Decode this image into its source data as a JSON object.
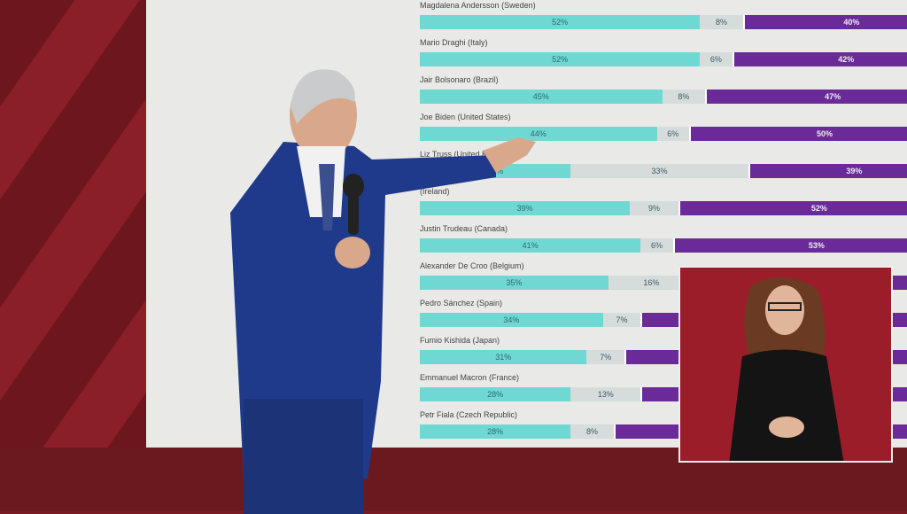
{
  "chart_data": {
    "type": "bar",
    "stacked": true,
    "orientation": "horizontal",
    "colors": {
      "approve": "#6fd8d2",
      "unsure": "#d6dcdb",
      "disapprove": "#6a2a98"
    },
    "rows": [
      {
        "label": "Magdalena Andersson (Sweden)",
        "values": [
          52,
          8,
          40
        ]
      },
      {
        "label": "Mario Draghi (Italy)",
        "values": [
          52,
          6,
          42
        ]
      },
      {
        "label": "Jair Bolsonaro (Brazil)",
        "values": [
          45,
          8,
          47
        ]
      },
      {
        "label": "Joe Biden (United States)",
        "values": [
          44,
          6,
          50
        ]
      },
      {
        "label": "Liz Truss (United Kin",
        "values": [
          28,
          33,
          39
        ]
      },
      {
        "label": "(Ireland)",
        "values": [
          39,
          9,
          52
        ]
      },
      {
        "label": "Justin Trudeau (Canada)",
        "values": [
          41,
          6,
          53
        ]
      },
      {
        "label": "Alexander De Croo (Belgium)",
        "values": [
          35,
          16,
          null
        ]
      },
      {
        "label": "Pedro Sánchez (Spain)",
        "values": [
          34,
          7,
          null
        ]
      },
      {
        "label": "Fumio Kishida (Japan)",
        "values": [
          31,
          7,
          null
        ]
      },
      {
        "label": "Emmanuel Macron (France)",
        "values": [
          28,
          13,
          null
        ]
      },
      {
        "label": "Petr Fiala (Czech Republic)",
        "values": [
          28,
          8,
          null
        ]
      }
    ]
  }
}
